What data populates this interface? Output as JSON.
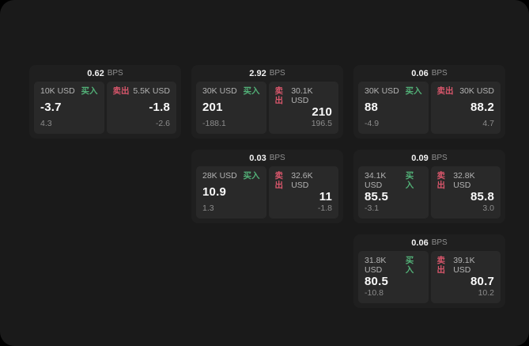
{
  "labels": {
    "bps": "BPS",
    "buy": "买入",
    "sell": "卖出"
  },
  "colors": {
    "page_bg": "#000000",
    "container_bg": "#1a1a1a",
    "card_bg": "#1f1f1f",
    "panel_bg": "#292929",
    "buy": "#52b077",
    "sell": "#d8566b"
  },
  "cards": [
    {
      "bps": "0.62",
      "buy": {
        "size": "10K USD",
        "value": "-3.7",
        "sub": "4.3"
      },
      "sell": {
        "size": "5.5K USD",
        "value": "-1.8",
        "sub": "-2.6"
      }
    },
    {
      "bps": "2.92",
      "buy": {
        "size": "30K USD",
        "value": "201",
        "sub": "-188.1"
      },
      "sell": {
        "size": "30.1K USD",
        "value": "210",
        "sub": "196.5"
      }
    },
    {
      "bps": "0.06",
      "buy": {
        "size": "30K USD",
        "value": "88",
        "sub": "-4.9"
      },
      "sell": {
        "size": "30K USD",
        "value": "88.2",
        "sub": "4.7"
      }
    },
    {
      "bps": "0.03",
      "buy": {
        "size": "28K USD",
        "value": "10.9",
        "sub": "1.3"
      },
      "sell": {
        "size": "32.6K USD",
        "value": "11",
        "sub": "-1.8"
      }
    },
    {
      "bps": "0.09",
      "buy": {
        "size": "34.1K USD",
        "value": "85.5",
        "sub": "-3.1"
      },
      "sell": {
        "size": "32.8K USD",
        "value": "85.8",
        "sub": "3.0"
      }
    },
    {
      "bps": "0.06",
      "buy": {
        "size": "31.8K USD",
        "value": "80.5",
        "sub": "-10.8"
      },
      "sell": {
        "size": "39.1K USD",
        "value": "80.7",
        "sub": "10.2"
      }
    }
  ]
}
